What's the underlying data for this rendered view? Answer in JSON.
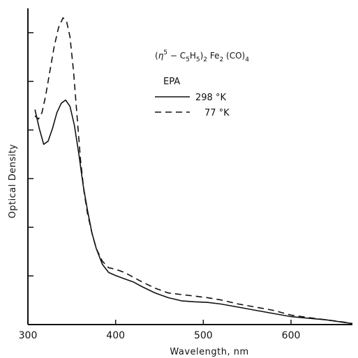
{
  "chart_data": {
    "type": "line",
    "title": "(η5-C5H5)2Fe2(CO)4",
    "title_parts": {
      "open": "(",
      "eta": "η",
      "eta_sup": "5",
      "dash": " − C",
      "c_sub": "5",
      "h": "H",
      "h_sub": "5",
      "close": ")",
      "close_sub": "2",
      "fe": " Fe",
      "fe_sub": "2",
      "co": " (CO)",
      "co_sub": "4"
    },
    "subtitle": "EPA",
    "xlabel": "Wavelength, nm",
    "ylabel": "Optical Density",
    "xlim": [
      300,
      670
    ],
    "ylim": [
      0,
      1
    ],
    "xticks": [
      300,
      400,
      500,
      600
    ],
    "xtick_labels": [
      "300",
      "400",
      "500",
      "600"
    ],
    "grid": false,
    "legend_position": "top-right",
    "series": [
      {
        "name": "298 °K",
        "style": "solid",
        "x": [
          308,
          313,
          318,
          323,
          328,
          333,
          338,
          343,
          348,
          353,
          358,
          363,
          368,
          373,
          378,
          385,
          392,
          400,
          410,
          420,
          430,
          445,
          460,
          475,
          490,
          505,
          520,
          540,
          560,
          580,
          600,
          620,
          640,
          660,
          670
        ],
        "y": [
          0.68,
          0.62,
          0.57,
          0.58,
          0.62,
          0.67,
          0.7,
          0.71,
          0.69,
          0.63,
          0.54,
          0.44,
          0.36,
          0.29,
          0.24,
          0.19,
          0.165,
          0.155,
          0.145,
          0.135,
          0.12,
          0.1,
          0.085,
          0.075,
          0.072,
          0.07,
          0.065,
          0.055,
          0.045,
          0.035,
          0.025,
          0.02,
          0.015,
          0.007,
          0.003
        ]
      },
      {
        "name": "77 °K",
        "style": "dashed",
        "x": [
          308,
          312,
          316,
          320,
          325,
          330,
          335,
          340,
          344,
          348,
          352,
          356,
          360,
          364,
          368,
          373,
          378,
          385,
          392,
          400,
          410,
          420,
          430,
          445,
          460,
          475,
          490,
          505,
          520,
          540,
          560,
          580,
          600,
          620,
          640,
          660,
          670
        ],
        "y": [
          0.66,
          0.65,
          0.67,
          0.72,
          0.8,
          0.88,
          0.94,
          0.97,
          0.96,
          0.91,
          0.8,
          0.66,
          0.52,
          0.42,
          0.35,
          0.29,
          0.24,
          0.2,
          0.18,
          0.175,
          0.165,
          0.15,
          0.135,
          0.115,
          0.1,
          0.095,
          0.09,
          0.085,
          0.078,
          0.065,
          0.055,
          0.045,
          0.03,
          0.022,
          0.015,
          0.008,
          0.003
        ]
      }
    ]
  }
}
